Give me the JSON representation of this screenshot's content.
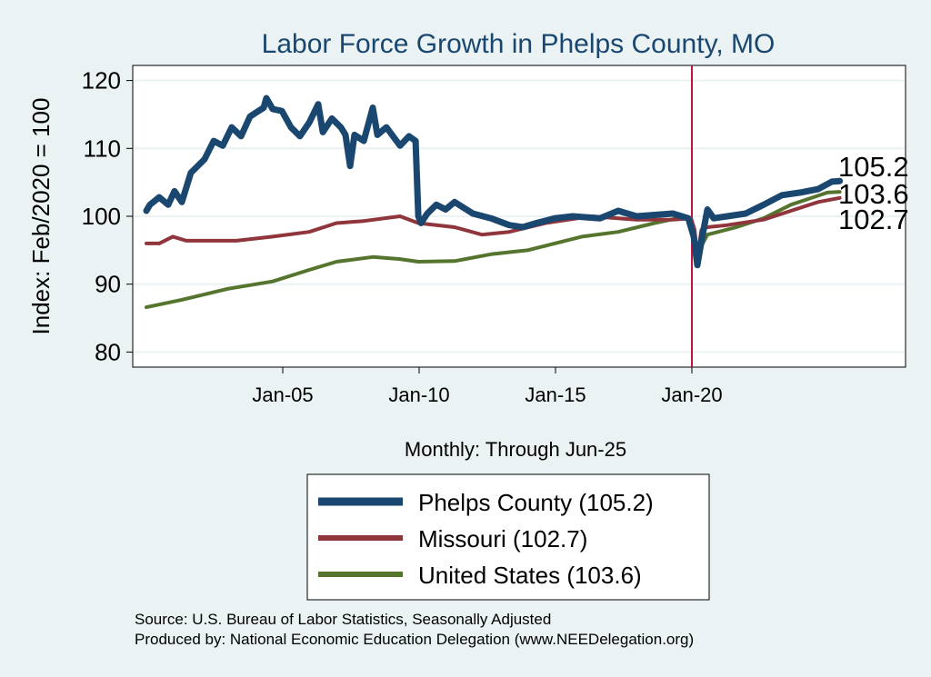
{
  "chart_data": {
    "type": "line",
    "title": "Labor Force Growth in Phelps  County, MO",
    "xlabel": "Monthly: Through Jun-25",
    "ylabel": "Index: Feb/2020 = 100",
    "xlim": [
      1999.5,
      2028.0
    ],
    "ylim": [
      79,
      122
    ],
    "grid": true,
    "yticks": [
      80,
      90,
      100,
      110,
      120
    ],
    "xticks": [
      {
        "value": 2005,
        "label": "Jan-05"
      },
      {
        "value": 2010,
        "label": "Jan-10"
      },
      {
        "value": 2015,
        "label": "Jan-15"
      },
      {
        "value": 2020,
        "label": "Jan-20"
      }
    ],
    "reference_line": {
      "x": 2020.0,
      "color": "#c0143c"
    },
    "legend_position": "bottom",
    "series": [
      {
        "name": "Phelps  County (105.2)",
        "end_label": "105.2",
        "color": "#1a476f",
        "width": 7,
        "points": [
          [
            2000.0,
            100.8
          ],
          [
            2000.13,
            101.7
          ],
          [
            2000.47,
            102.8
          ],
          [
            2000.8,
            101.7
          ],
          [
            2001.03,
            103.7
          ],
          [
            2001.3,
            102.1
          ],
          [
            2001.63,
            106.4
          ],
          [
            2002.13,
            108.4
          ],
          [
            2002.47,
            111.1
          ],
          [
            2002.8,
            110.4
          ],
          [
            2003.13,
            113.1
          ],
          [
            2003.47,
            111.8
          ],
          [
            2003.8,
            114.7
          ],
          [
            2004.3,
            116.0
          ],
          [
            2004.4,
            117.4
          ],
          [
            2004.63,
            115.8
          ],
          [
            2004.97,
            115.5
          ],
          [
            2005.3,
            113.1
          ],
          [
            2005.63,
            111.8
          ],
          [
            2005.97,
            113.8
          ],
          [
            2006.3,
            116.5
          ],
          [
            2006.47,
            112.4
          ],
          [
            2006.8,
            114.4
          ],
          [
            2007.13,
            113.1
          ],
          [
            2007.3,
            112.0
          ],
          [
            2007.47,
            107.4
          ],
          [
            2007.63,
            112.0
          ],
          [
            2007.97,
            111.1
          ],
          [
            2008.3,
            116.0
          ],
          [
            2008.47,
            112.0
          ],
          [
            2008.8,
            113.1
          ],
          [
            2009.3,
            110.4
          ],
          [
            2009.63,
            111.8
          ],
          [
            2009.87,
            111.1
          ],
          [
            2009.97,
            100.0
          ],
          [
            2010.07,
            99.0
          ],
          [
            2010.3,
            100.4
          ],
          [
            2010.63,
            101.7
          ],
          [
            2010.97,
            101.0
          ],
          [
            2011.3,
            102.1
          ],
          [
            2011.97,
            100.4
          ],
          [
            2012.63,
            99.7
          ],
          [
            2013.3,
            98.7
          ],
          [
            2013.8,
            98.4
          ],
          [
            2014.3,
            99.0
          ],
          [
            2014.97,
            99.7
          ],
          [
            2015.63,
            100.0
          ],
          [
            2016.63,
            99.7
          ],
          [
            2017.3,
            100.8
          ],
          [
            2017.97,
            100.0
          ],
          [
            2019.3,
            100.4
          ],
          [
            2019.87,
            99.7
          ],
          [
            2020.07,
            97.0
          ],
          [
            2020.2,
            92.8
          ],
          [
            2020.37,
            96.8
          ],
          [
            2020.57,
            101.0
          ],
          [
            2020.8,
            99.7
          ],
          [
            2021.3,
            100.0
          ],
          [
            2021.97,
            100.4
          ],
          [
            2022.63,
            101.7
          ],
          [
            2023.3,
            103.1
          ],
          [
            2023.97,
            103.5
          ],
          [
            2024.63,
            104.0
          ],
          [
            2025.13,
            105.1
          ],
          [
            2025.42,
            105.2
          ]
        ]
      },
      {
        "name": "Missouri (102.7)",
        "end_label": "102.7",
        "color": "#90353b",
        "width": 4,
        "points": [
          [
            2000.0,
            96.0
          ],
          [
            2000.47,
            96.0
          ],
          [
            2000.97,
            97.0
          ],
          [
            2001.47,
            96.4
          ],
          [
            2003.3,
            96.4
          ],
          [
            2004.63,
            97.0
          ],
          [
            2005.97,
            97.7
          ],
          [
            2006.97,
            99.0
          ],
          [
            2007.97,
            99.3
          ],
          [
            2009.3,
            100.0
          ],
          [
            2009.97,
            99.0
          ],
          [
            2011.3,
            98.4
          ],
          [
            2012.3,
            97.3
          ],
          [
            2013.3,
            97.7
          ],
          [
            2014.63,
            99.0
          ],
          [
            2016.3,
            100.0
          ],
          [
            2017.97,
            99.5
          ],
          [
            2019.3,
            99.5
          ],
          [
            2019.97,
            99.7
          ],
          [
            2020.1,
            98.0
          ],
          [
            2020.2,
            94.0
          ],
          [
            2020.35,
            98.0
          ],
          [
            2020.57,
            98.4
          ],
          [
            2021.3,
            98.7
          ],
          [
            2022.63,
            99.5
          ],
          [
            2023.63,
            100.8
          ],
          [
            2024.63,
            102.1
          ],
          [
            2025.42,
            102.7
          ]
        ]
      },
      {
        "name": "United States (103.6)",
        "end_label": "103.6",
        "color": "#55752f",
        "width": 4,
        "points": [
          [
            2000.0,
            86.6
          ],
          [
            2001.3,
            87.7
          ],
          [
            2002.97,
            89.3
          ],
          [
            2004.63,
            90.4
          ],
          [
            2005.97,
            92.1
          ],
          [
            2006.97,
            93.3
          ],
          [
            2008.3,
            94.0
          ],
          [
            2009.3,
            93.7
          ],
          [
            2009.97,
            93.3
          ],
          [
            2011.3,
            93.4
          ],
          [
            2012.63,
            94.4
          ],
          [
            2013.97,
            95.0
          ],
          [
            2014.97,
            96.0
          ],
          [
            2015.97,
            97.0
          ],
          [
            2017.3,
            97.7
          ],
          [
            2018.63,
            99.0
          ],
          [
            2019.8,
            100.0
          ],
          [
            2020.2,
            94.5
          ],
          [
            2020.57,
            97.3
          ],
          [
            2021.63,
            98.4
          ],
          [
            2022.63,
            99.7
          ],
          [
            2023.63,
            101.7
          ],
          [
            2024.97,
            103.5
          ],
          [
            2025.42,
            103.6
          ]
        ]
      }
    ]
  },
  "footer": {
    "source": "Source: U.S. Bureau of Labor Statistics, Seasonally Adjusted",
    "produced": "Produced by: National Economic Education Delegation (www.NEEDelegation.org)"
  }
}
